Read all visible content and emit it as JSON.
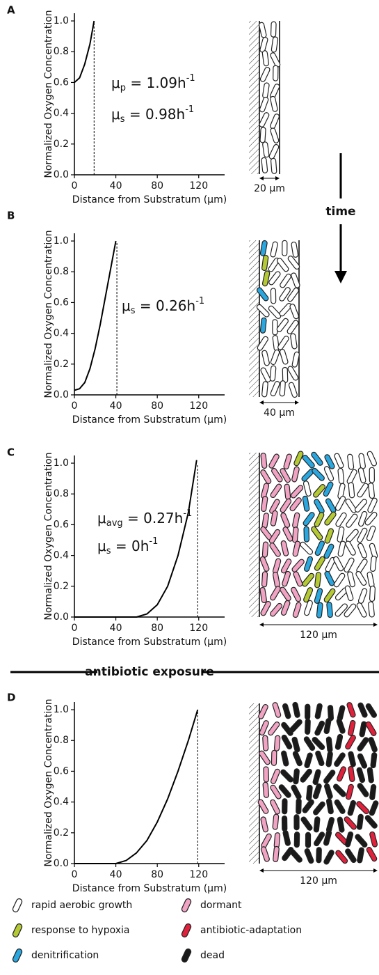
{
  "chart_data": [
    {
      "type": "line",
      "panel": "A",
      "xlabel": "Distance from Substratum (μm)",
      "ylabel": "Normalized Oxygen Concentration",
      "x": [
        0,
        5,
        10,
        15,
        19
      ],
      "values": [
        0.6,
        0.63,
        0.72,
        0.85,
        1.0
      ],
      "color": "#000000",
      "xlim": [
        0,
        145
      ],
      "ylim": [
        0,
        1.05
      ],
      "xticks": [
        0,
        40,
        80,
        120
      ],
      "yticks": [
        {
          "value": 0,
          "label": "0.0"
        },
        0.2,
        0.4,
        0.6,
        0.8,
        {
          "value": 1,
          "label": "1.0"
        }
      ],
      "thickness": 19,
      "annotations": [
        {
          "base": "μ",
          "sub": "p",
          "text": " = 1.09h",
          "sup": "-1"
        },
        {
          "base": "μ",
          "sub": "s",
          "text": " = 0.98h",
          "sup": "-1"
        }
      ],
      "scale_bar": "20 μm"
    },
    {
      "type": "line",
      "panel": "B",
      "xlabel": "Distance from Substratum (μm)",
      "ylabel": "Normalized Oxygen Concentration",
      "x": [
        0,
        5,
        10,
        15,
        20,
        25,
        30,
        35,
        40
      ],
      "values": [
        0.03,
        0.04,
        0.08,
        0.17,
        0.3,
        0.46,
        0.64,
        0.82,
        1.0
      ],
      "color": "#000000",
      "xlim": [
        0,
        145
      ],
      "ylim": [
        0,
        1.05
      ],
      "xticks": [
        0,
        40,
        80,
        120
      ],
      "yticks": [
        {
          "value": 0,
          "label": "0.0"
        },
        0.2,
        0.4,
        0.6,
        0.8,
        {
          "value": 1,
          "label": "1.0"
        }
      ],
      "thickness": 41,
      "annotations": [
        {
          "base": "μ",
          "sub": "s",
          "text": " = 0.26h",
          "sup": "-1"
        }
      ],
      "scale_bar": "40 μm"
    },
    {
      "type": "line",
      "panel": "C",
      "xlabel": "Distance from Substratum (μm)",
      "ylabel": "Normalized Oxygen Concentration",
      "x": [
        0,
        60,
        70,
        80,
        90,
        100,
        110,
        118
      ],
      "values": [
        0,
        0,
        0.02,
        0.08,
        0.2,
        0.4,
        0.68,
        1.02
      ],
      "color": "#000000",
      "xlim": [
        0,
        145
      ],
      "ylim": [
        0,
        1.05
      ],
      "xticks": [
        0,
        40,
        80,
        120
      ],
      "yticks": [
        {
          "value": 0,
          "label": "0.0"
        },
        0.2,
        0.4,
        0.6,
        0.8,
        {
          "value": 1,
          "label": "1.0"
        }
      ],
      "thickness": 119,
      "annotations": [
        {
          "base": "μ",
          "sub": "avg",
          "text": " = 0.27h",
          "sup": "-1"
        },
        {
          "base": "μ",
          "sub": "s",
          "text": " = 0h",
          "sup": "-1"
        }
      ],
      "scale_bar": "120 μm"
    },
    {
      "type": "line",
      "panel": "D",
      "xlabel": "Distance from Substratum (μm)",
      "ylabel": "Normalized Oxygen Concentration",
      "x": [
        0,
        40,
        50,
        60,
        70,
        80,
        90,
        100,
        110,
        119
      ],
      "values": [
        0,
        0,
        0.02,
        0.07,
        0.15,
        0.27,
        0.42,
        0.6,
        0.8,
        1.0
      ],
      "color": "#000000",
      "xlim": [
        0,
        145
      ],
      "ylim": [
        0,
        1.05
      ],
      "xticks": [
        0,
        40,
        80,
        120
      ],
      "yticks": [
        {
          "value": 0,
          "label": "0.0"
        },
        0.2,
        0.4,
        0.6,
        0.8,
        {
          "value": 1,
          "label": "1.0"
        }
      ],
      "thickness": 119,
      "annotations": [],
      "scale_bar": "120 μm"
    }
  ],
  "time_label": "time",
  "divider_label": "antibiotic exposure",
  "legend": [
    {
      "name": "rapid aerobic growth",
      "color": "#ffffff"
    },
    {
      "name": "response to hypoxia",
      "color": "#b5c934"
    },
    {
      "name": "denitrification",
      "color": "#2aa7df"
    },
    {
      "name": "dormant",
      "color": "#f0a3c2"
    },
    {
      "name": "antibiotic-adaptation",
      "color": "#e0213c"
    },
    {
      "name": "dead",
      "color": "#1a1a1a"
    }
  ]
}
